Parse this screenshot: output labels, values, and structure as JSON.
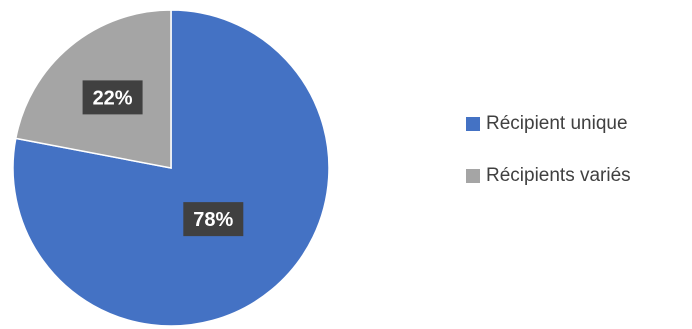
{
  "chart_data": {
    "type": "pie",
    "title": "",
    "series": [
      {
        "values": [
          78,
          22
        ],
        "data_labels": [
          "78%",
          "22%"
        ]
      }
    ],
    "categories": [
      "Récipient unique",
      "Récipients variés"
    ],
    "colors": [
      "#4472C4",
      "#A5A5A5"
    ],
    "legend_position": "right",
    "data_label_style": "white bold text on dark box",
    "data_label_color": "#404040"
  }
}
